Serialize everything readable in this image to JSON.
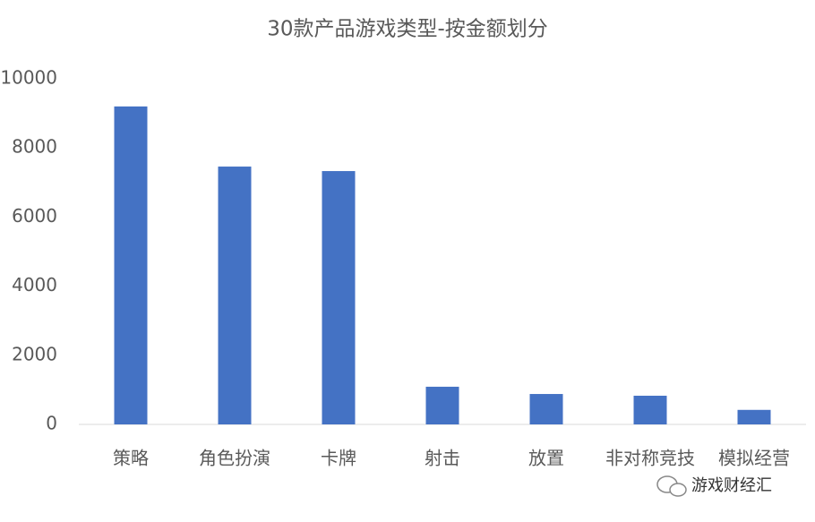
{
  "chart_data": {
    "type": "bar",
    "title": "30款产品游戏类型-按金额划分",
    "categories": [
      "策略",
      "角色扮演",
      "卡牌",
      "射击",
      "放置",
      "非对称竞技",
      "模拟经营"
    ],
    "values": [
      9200,
      7460,
      7330,
      1090,
      880,
      830,
      420
    ],
    "color": "#4472c4",
    "ylim": [
      0,
      10000
    ],
    "yticks": [
      0,
      2000,
      4000,
      6000,
      8000,
      10000
    ],
    "grid": false
  },
  "watermark": "游戏财经汇"
}
